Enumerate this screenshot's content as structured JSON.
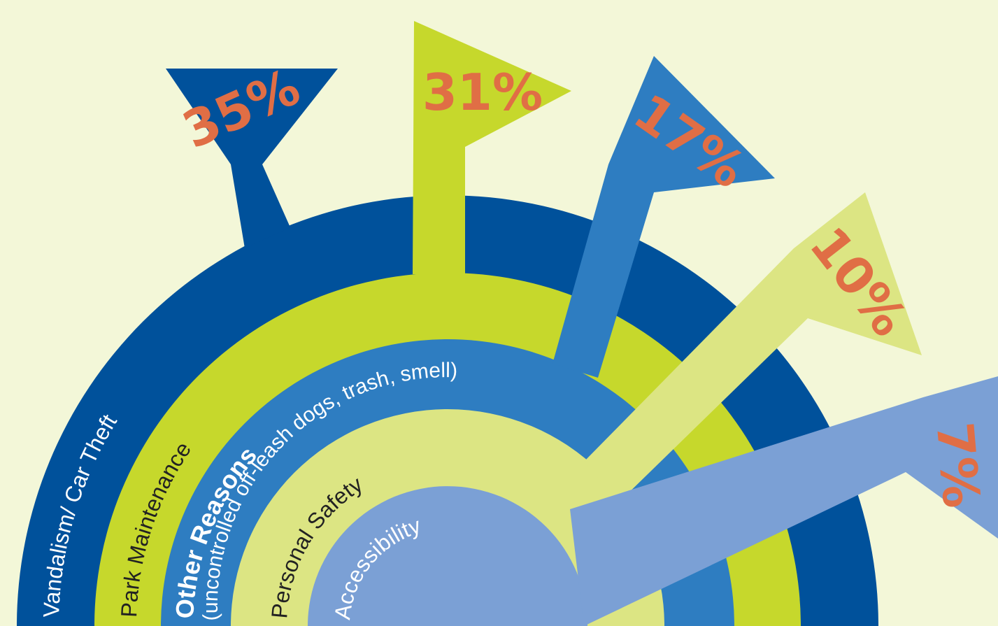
{
  "chart_data": {
    "type": "radial-bar",
    "unit": "%",
    "series": [
      {
        "label": "Vandalism/ Car Theft",
        "value": 35,
        "value_label": "35%",
        "color": "#00519b",
        "label_color": "#ffffff"
      },
      {
        "label": "Park Maintenance",
        "value": 31,
        "value_label": "31%",
        "color": "#c6d82c",
        "label_color": "#222222"
      },
      {
        "label": "Other Reasons",
        "sublabel": "(uncontrolled off-leash dogs, trash, smell)",
        "value": 17,
        "value_label": "17%",
        "color": "#2e7dc1",
        "label_color": "#ffffff"
      },
      {
        "label": "Personal Safety",
        "value": 10,
        "value_label": "10%",
        "color": "#dce583",
        "label_color": "#222222"
      },
      {
        "label": "Accessibility",
        "value": 7,
        "value_label": "7%",
        "color": "#7ba0d5",
        "label_color": "#ffffff"
      }
    ],
    "value_label_color": "#e06e45",
    "background": "#f3f7d8"
  }
}
